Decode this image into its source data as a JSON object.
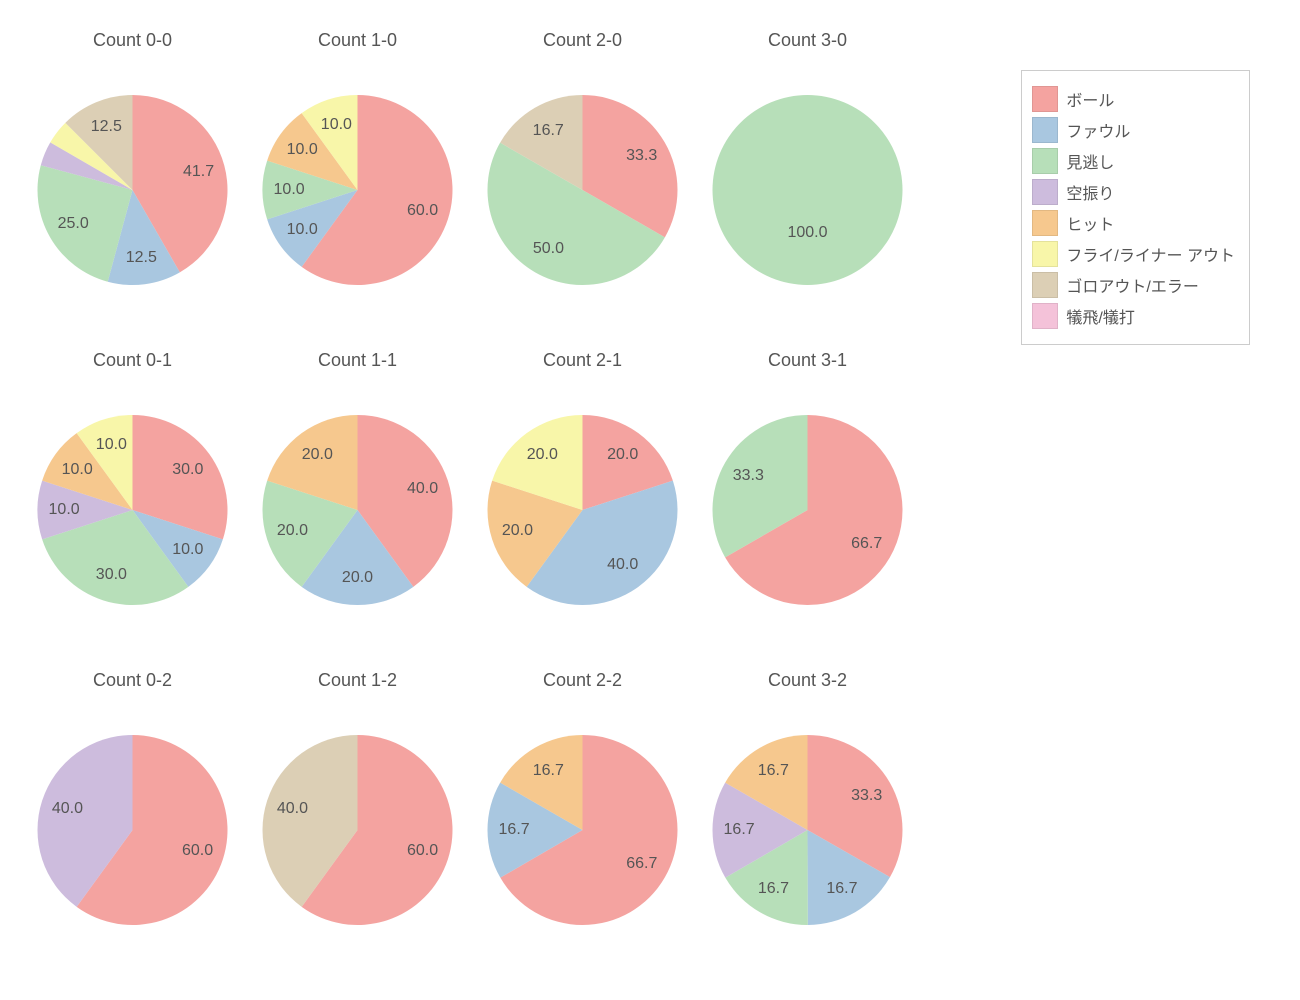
{
  "background_color": "#ffffff",
  "text_color": "#555555",
  "title_fontsize": 18,
  "label_fontsize": 16,
  "pie_radius": 95,
  "label_radius_factor": 0.72,
  "start_angle_deg": 90,
  "direction": "clockwise",
  "categories_order": [
    "ball",
    "foul",
    "look",
    "swing",
    "hit",
    "fly",
    "ground",
    "sac"
  ],
  "categories": {
    "ball": {
      "label": "ボール",
      "color": "#f4a3a0"
    },
    "foul": {
      "label": "ファウル",
      "color": "#a9c7e0"
    },
    "look": {
      "label": "見逃し",
      "color": "#b7dfb9"
    },
    "swing": {
      "label": "空振り",
      "color": "#cdbcdd"
    },
    "hit": {
      "label": "ヒット",
      "color": "#f6c88e"
    },
    "fly": {
      "label": "フライ/ライナー アウト",
      "color": "#f8f6a9"
    },
    "ground": {
      "label": "ゴロアウト/エラー",
      "color": "#dccfb5"
    },
    "sac": {
      "label": "犠飛/犠打",
      "color": "#f4c2d9"
    }
  },
  "legend": {
    "border_color": "#cccccc",
    "position": "top-right"
  },
  "grid": {
    "cols": 4,
    "rows": 3
  },
  "charts": [
    {
      "id": "c00",
      "title": "Count 0-0",
      "slices": [
        {
          "cat": "ball",
          "value": 41.7
        },
        {
          "cat": "foul",
          "value": 12.5
        },
        {
          "cat": "look",
          "value": 25.0
        },
        {
          "cat": "swing",
          "value": 4.15,
          "hide_label": true
        },
        {
          "cat": "fly",
          "value": 4.15,
          "hide_label": true
        },
        {
          "cat": "ground",
          "value": 12.5
        }
      ]
    },
    {
      "id": "c10",
      "title": "Count 1-0",
      "slices": [
        {
          "cat": "ball",
          "value": 60.0
        },
        {
          "cat": "foul",
          "value": 10.0
        },
        {
          "cat": "look",
          "value": 10.0
        },
        {
          "cat": "hit",
          "value": 10.0
        },
        {
          "cat": "fly",
          "value": 10.0
        }
      ]
    },
    {
      "id": "c20",
      "title": "Count 2-0",
      "slices": [
        {
          "cat": "ball",
          "value": 33.3
        },
        {
          "cat": "look",
          "value": 50.0
        },
        {
          "cat": "ground",
          "value": 16.7
        }
      ]
    },
    {
      "id": "c30",
      "title": "Count 3-0",
      "slices": [
        {
          "cat": "look",
          "value": 100.0
        }
      ]
    },
    {
      "id": "c01",
      "title": "Count 0-1",
      "slices": [
        {
          "cat": "ball",
          "value": 30.0
        },
        {
          "cat": "foul",
          "value": 10.0
        },
        {
          "cat": "look",
          "value": 30.0
        },
        {
          "cat": "swing",
          "value": 10.0
        },
        {
          "cat": "hit",
          "value": 10.0
        },
        {
          "cat": "fly",
          "value": 10.0
        }
      ]
    },
    {
      "id": "c11",
      "title": "Count 1-1",
      "slices": [
        {
          "cat": "ball",
          "value": 40.0
        },
        {
          "cat": "foul",
          "value": 20.0
        },
        {
          "cat": "look",
          "value": 20.0
        },
        {
          "cat": "hit",
          "value": 20.0
        }
      ]
    },
    {
      "id": "c21",
      "title": "Count 2-1",
      "slices": [
        {
          "cat": "ball",
          "value": 20.0
        },
        {
          "cat": "foul",
          "value": 40.0
        },
        {
          "cat": "hit",
          "value": 20.0
        },
        {
          "cat": "fly",
          "value": 20.0
        }
      ]
    },
    {
      "id": "c31",
      "title": "Count 3-1",
      "slices": [
        {
          "cat": "ball",
          "value": 66.7
        },
        {
          "cat": "look",
          "value": 33.3
        }
      ]
    },
    {
      "id": "c02",
      "title": "Count 0-2",
      "slices": [
        {
          "cat": "ball",
          "value": 60.0
        },
        {
          "cat": "swing",
          "value": 40.0
        }
      ]
    },
    {
      "id": "c12",
      "title": "Count 1-2",
      "slices": [
        {
          "cat": "ball",
          "value": 60.0
        },
        {
          "cat": "ground",
          "value": 40.0
        }
      ]
    },
    {
      "id": "c22",
      "title": "Count 2-2",
      "slices": [
        {
          "cat": "ball",
          "value": 66.7
        },
        {
          "cat": "foul",
          "value": 16.7
        },
        {
          "cat": "hit",
          "value": 16.7
        }
      ]
    },
    {
      "id": "c32",
      "title": "Count 3-2",
      "slices": [
        {
          "cat": "ball",
          "value": 33.3
        },
        {
          "cat": "foul",
          "value": 16.7
        },
        {
          "cat": "look",
          "value": 16.7
        },
        {
          "cat": "swing",
          "value": 16.7
        },
        {
          "cat": "hit",
          "value": 16.7
        }
      ]
    }
  ]
}
